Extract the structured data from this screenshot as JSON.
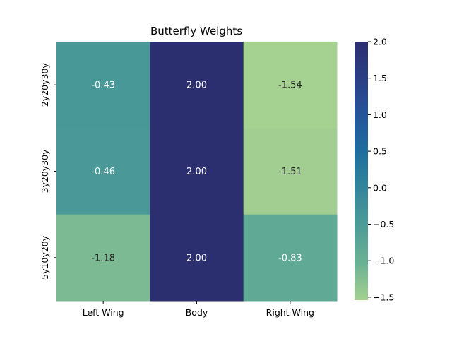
{
  "chart_data": {
    "type": "heatmap",
    "title": "Butterfly Weights",
    "xlabel": "",
    "ylabel": "",
    "x_categories": [
      "Left Wing",
      "Body",
      "Right Wing"
    ],
    "y_categories": [
      "2y20y30y",
      "3y20y30y",
      "5y10y20y"
    ],
    "values": [
      [
        -0.43,
        2.0,
        -1.54
      ],
      [
        -0.46,
        2.0,
        -1.51
      ],
      [
        -1.18,
        2.0,
        -0.83
      ]
    ],
    "value_format": "2 decimals",
    "colorbar": {
      "vmin": -1.54,
      "vmax": 2.0,
      "ticks": [
        2.0,
        1.5,
        1.0,
        0.5,
        0.0,
        -0.5,
        -1.0,
        -1.5
      ],
      "tick_labels": [
        "2.0",
        "1.5",
        "1.0",
        "0.5",
        "0.0",
        "−0.5",
        "−1.0",
        "−1.5"
      ],
      "colormap": "crest",
      "colormap_stops": [
        "#a5d191",
        "#6bb194",
        "#4e9c97",
        "#34859b",
        "#1f6e9c",
        "#25559a",
        "#2c3e83",
        "#2c2f6f"
      ]
    },
    "grid": false,
    "legend": "colorbar-right"
  }
}
